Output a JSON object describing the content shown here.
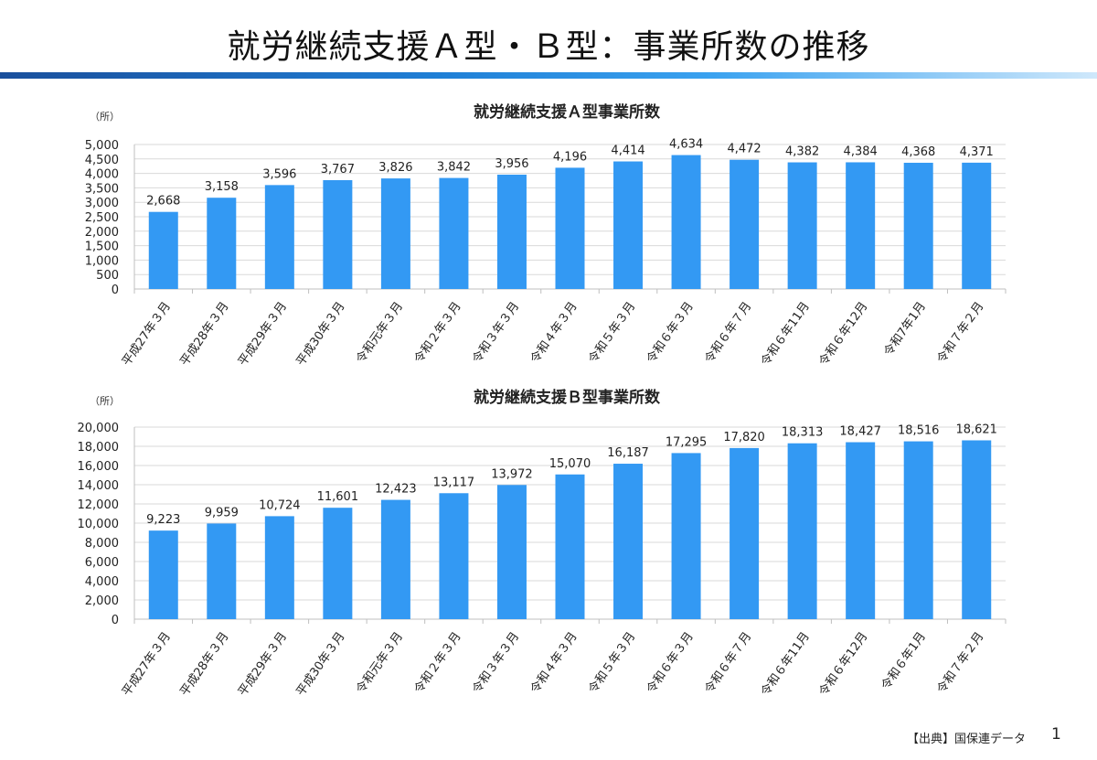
{
  "title": "就労継続支援Ａ型・Ｂ型：事業所数の推移",
  "footer": {
    "source": "【出典】国保連データ",
    "page_number": "1"
  },
  "colors": {
    "bar": "#3399f3",
    "grid": "#d9d9d9",
    "band_start": "#1a4f9c",
    "band_end": "#cfe8fb"
  },
  "chart_data": [
    {
      "type": "bar",
      "title": "就労継続支援Ａ型事業所数",
      "ylabel": "（所）",
      "ylim": [
        0,
        5000
      ],
      "yticks": [
        0,
        500,
        1000,
        1500,
        2000,
        2500,
        3000,
        3500,
        4000,
        4500,
        5000
      ],
      "grid": true,
      "categories": [
        "平成27年３月",
        "平成28年３月",
        "平成29年３月",
        "平成30年３月",
        "令和元年３月",
        "令和２年３月",
        "令和３年３月",
        "令和４年３月",
        "令和５年３月",
        "令和６年３月",
        "令和６年７月",
        "令和６年11月",
        "令和６年12月",
        "令和7年1月",
        "令和７年２月"
      ],
      "values": [
        2668,
        3158,
        3596,
        3767,
        3826,
        3842,
        3956,
        4196,
        4414,
        4634,
        4472,
        4382,
        4384,
        4368,
        4371
      ]
    },
    {
      "type": "bar",
      "title": "就労継続支援Ｂ型事業所数",
      "ylabel": "（所）",
      "ylim": [
        0,
        20000
      ],
      "yticks": [
        0,
        2000,
        4000,
        6000,
        8000,
        10000,
        12000,
        14000,
        16000,
        18000,
        20000
      ],
      "grid": true,
      "categories": [
        "平成27年３月",
        "平成28年３月",
        "平成29年３月",
        "平成30年３月",
        "令和元年３月",
        "令和２年３月",
        "令和３年３月",
        "令和４年３月",
        "令和５年３月",
        "令和６年３月",
        "令和６年７月",
        "令和６年11月",
        "令和６年12月",
        "令和６年1月",
        "令和７年２月"
      ],
      "values": [
        9223,
        9959,
        10724,
        11601,
        12423,
        13117,
        13972,
        15070,
        16187,
        17295,
        17820,
        18313,
        18427,
        18516,
        18621
      ]
    }
  ]
}
